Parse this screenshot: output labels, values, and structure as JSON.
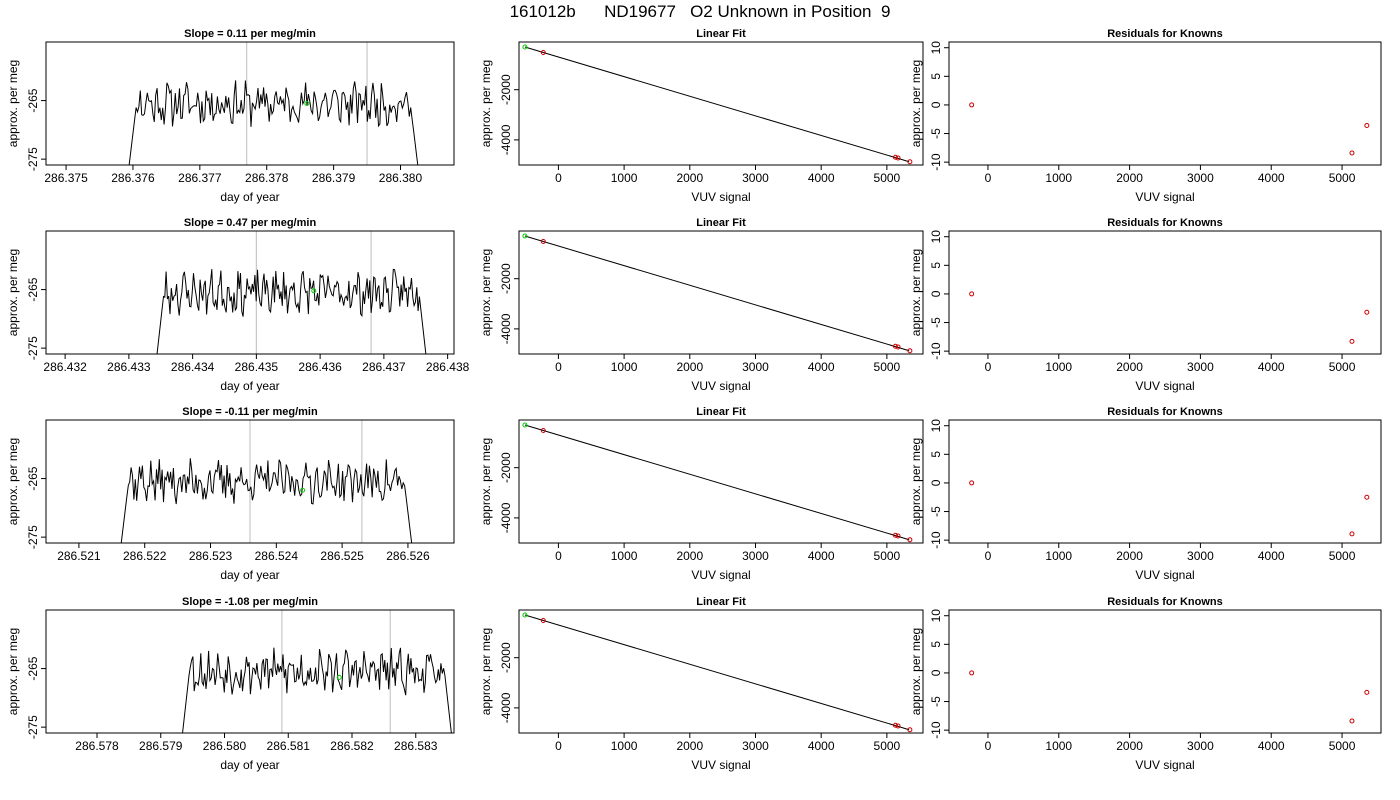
{
  "page": {
    "title": "161012b      ND19677   O2 Unknown in Position  9"
  },
  "colors": {
    "trace": "#000000",
    "guide": "#c8c8c8",
    "known": "#cc0000",
    "unknown": "#00cc00",
    "fit": "#000000"
  },
  "chart_data": [
    {
      "row": 1,
      "time_series": {
        "type": "line",
        "title": "Slope =  0.11  per meg/min",
        "xlabel": "day of year",
        "ylabel": "approx. per meg",
        "xlim": [
          286.3747,
          286.3808
        ],
        "ylim": [
          -276,
          -255
        ],
        "xticks": [
          "286.375",
          "286.376",
          "286.377",
          "286.378",
          "286.379",
          "286.380"
        ],
        "yticks": [
          "-275",
          "-265"
        ],
        "start": 286.3759,
        "end": 286.3803,
        "baseline": -265.5,
        "vlines": [
          286.3777,
          286.3795
        ],
        "marker": {
          "x": 286.3786,
          "y": -265.5
        },
        "seed": 11
      },
      "linear_fit": {
        "type": "scatter",
        "title": "Linear Fit",
        "xlabel": "VUV signal",
        "ylabel": "approx. per meg",
        "xlim": [
          -600,
          5550
        ],
        "ylim": [
          -5000,
          -100
        ],
        "xticks": [
          0,
          1000,
          2000,
          3000,
          4000,
          5000
        ],
        "yticks": [
          -2000,
          -4000
        ],
        "line": [
          [
            -510,
            -300
          ],
          [
            5340,
            -4870
          ]
        ],
        "known": [
          [
            -230,
            -520
          ],
          [
            5130,
            -4690
          ],
          [
            5170,
            -4720
          ],
          [
            5350,
            -4870
          ]
        ],
        "unknown": [
          [
            -510,
            -300
          ]
        ]
      },
      "residuals": {
        "type": "scatter",
        "title": "Residuals for Knowns",
        "xlabel": "VUV signal",
        "ylabel": "approx. per meg",
        "xlim": [
          -550,
          5550
        ],
        "ylim": [
          -10.5,
          11
        ],
        "xticks": [
          0,
          1000,
          2000,
          3000,
          4000,
          5000
        ],
        "yticks": [
          10,
          5,
          0,
          -5,
          -10
        ],
        "points": [
          [
            -230,
            0
          ],
          [
            5140,
            -8.4
          ],
          [
            5350,
            -3.6
          ]
        ]
      }
    },
    {
      "row": 2,
      "time_series": {
        "type": "line",
        "title": "Slope =  0.47  per meg/min",
        "xlabel": "day of year",
        "ylabel": "approx. per meg",
        "xlim": [
          286.4317,
          286.4381
        ],
        "ylim": [
          -276,
          -255
        ],
        "xticks": [
          "286.432",
          "286.433",
          "286.434",
          "286.435",
          "286.436",
          "286.437",
          "286.438"
        ],
        "yticks": [
          "-275",
          "-265"
        ],
        "start": 286.4334,
        "end": 286.4377,
        "baseline": -265.5,
        "vlines": [
          286.435,
          286.4368
        ],
        "marker": {
          "x": 286.4359,
          "y": -265.2
        },
        "seed": 23
      },
      "linear_fit": {
        "type": "scatter",
        "title": "Linear Fit",
        "xlabel": "VUV signal",
        "ylabel": "approx. per meg",
        "xlim": [
          -600,
          5550
        ],
        "ylim": [
          -5000,
          -100
        ],
        "xticks": [
          0,
          1000,
          2000,
          3000,
          4000,
          5000
        ],
        "yticks": [
          -2000,
          -4000
        ],
        "line": [
          [
            -510,
            -300
          ],
          [
            5340,
            -4870
          ]
        ],
        "known": [
          [
            -230,
            -520
          ],
          [
            5130,
            -4690
          ],
          [
            5170,
            -4720
          ],
          [
            5350,
            -4870
          ]
        ],
        "unknown": [
          [
            -510,
            -300
          ]
        ]
      },
      "residuals": {
        "type": "scatter",
        "title": "Residuals for Knowns",
        "xlabel": "VUV signal",
        "ylabel": "approx. per meg",
        "xlim": [
          -550,
          5550
        ],
        "ylim": [
          -10.5,
          11
        ],
        "xticks": [
          0,
          1000,
          2000,
          3000,
          4000,
          5000
        ],
        "yticks": [
          10,
          5,
          0,
          -5,
          -10
        ],
        "points": [
          [
            -230,
            0
          ],
          [
            5140,
            -8.3
          ],
          [
            5350,
            -3.2
          ]
        ]
      }
    },
    {
      "row": 3,
      "time_series": {
        "type": "line",
        "title": "Slope =  -0.11  per meg/min",
        "xlabel": "day of year",
        "ylabel": "approx. per meg",
        "xlim": [
          286.5205,
          286.5267
        ],
        "ylim": [
          -276,
          -255
        ],
        "xticks": [
          "286.521",
          "286.522",
          "286.523",
          "286.524",
          "286.525",
          "286.526"
        ],
        "yticks": [
          "-275",
          "-265"
        ],
        "start": 286.5216,
        "end": 286.5261,
        "baseline": -265.5,
        "vlines": [
          286.5236,
          286.5253
        ],
        "marker": {
          "x": 286.5244,
          "y": -267.0
        },
        "seed": 37
      },
      "linear_fit": {
        "type": "scatter",
        "title": "Linear Fit",
        "xlabel": "VUV signal",
        "ylabel": "approx. per meg",
        "xlim": [
          -600,
          5550
        ],
        "ylim": [
          -5000,
          -100
        ],
        "xticks": [
          0,
          1000,
          2000,
          3000,
          4000,
          5000
        ],
        "yticks": [
          -2000,
          -4000
        ],
        "line": [
          [
            -510,
            -300
          ],
          [
            5340,
            -4870
          ]
        ],
        "known": [
          [
            -230,
            -520
          ],
          [
            5130,
            -4690
          ],
          [
            5170,
            -4720
          ],
          [
            5350,
            -4870
          ]
        ],
        "unknown": [
          [
            -510,
            -300
          ]
        ]
      },
      "residuals": {
        "type": "scatter",
        "title": "Residuals for Knowns",
        "xlabel": "VUV signal",
        "ylabel": "approx. per meg",
        "xlim": [
          -550,
          5550
        ],
        "ylim": [
          -10.5,
          11
        ],
        "xticks": [
          0,
          1000,
          2000,
          3000,
          4000,
          5000
        ],
        "yticks": [
          10,
          5,
          0,
          -5,
          -10
        ],
        "points": [
          [
            -230,
            0
          ],
          [
            5140,
            -8.9
          ],
          [
            5350,
            -2.5
          ]
        ]
      }
    },
    {
      "row": 4,
      "time_series": {
        "type": "line",
        "title": "Slope =  -1.08  per meg/min",
        "xlabel": "day of year",
        "ylabel": "approx. per meg",
        "xlim": [
          286.5772,
          286.5836
        ],
        "ylim": [
          -276,
          -255
        ],
        "xticks": [
          "286.578",
          "286.579",
          "286.580",
          "286.581",
          "286.582",
          "286.583"
        ],
        "yticks": [
          "-275",
          "-265"
        ],
        "start": 286.5793,
        "end": 286.5836,
        "baseline": -265.5,
        "vlines": [
          286.5809,
          286.5826
        ],
        "marker": {
          "x": 286.5818,
          "y": -266.5
        },
        "seed": 53
      },
      "linear_fit": {
        "type": "scatter",
        "title": "Linear Fit",
        "xlabel": "VUV signal",
        "ylabel": "approx. per meg",
        "xlim": [
          -600,
          5550
        ],
        "ylim": [
          -5000,
          -100
        ],
        "xticks": [
          0,
          1000,
          2000,
          3000,
          4000,
          5000
        ],
        "yticks": [
          -2000,
          -4000
        ],
        "line": [
          [
            -510,
            -300
          ],
          [
            5340,
            -4870
          ]
        ],
        "known": [
          [
            -230,
            -520
          ],
          [
            5130,
            -4690
          ],
          [
            5170,
            -4720
          ],
          [
            5350,
            -4870
          ]
        ],
        "unknown": [
          [
            -510,
            -300
          ]
        ]
      },
      "residuals": {
        "type": "scatter",
        "title": "Residuals for Knowns",
        "xlabel": "VUV signal",
        "ylabel": "approx. per meg",
        "xlim": [
          -550,
          5550
        ],
        "ylim": [
          -10.5,
          11
        ],
        "xticks": [
          0,
          1000,
          2000,
          3000,
          4000,
          5000
        ],
        "yticks": [
          10,
          5,
          0,
          -5,
          -10
        ],
        "points": [
          [
            -230,
            0
          ],
          [
            5140,
            -8.4
          ],
          [
            5350,
            -3.4
          ]
        ]
      }
    }
  ]
}
